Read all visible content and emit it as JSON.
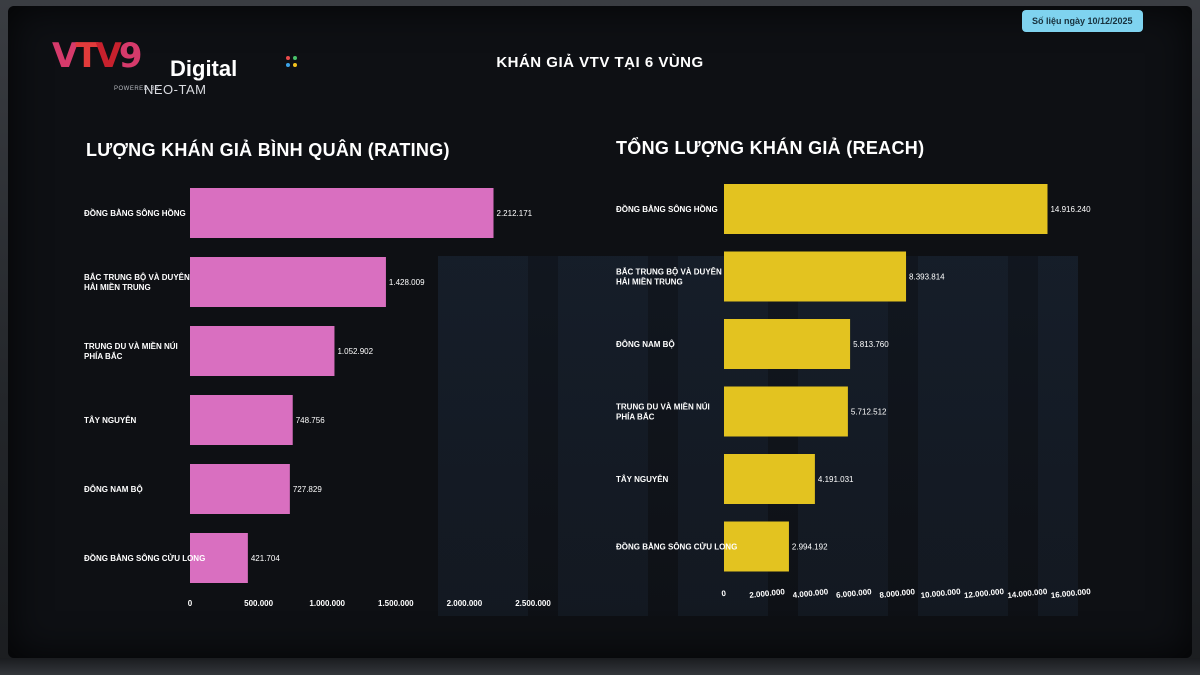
{
  "header": {
    "main_title": "KHÁN GIẢ VTV TẠI 6 VÙNG",
    "date_badge": "Số liệu ngày 10/12/2025"
  },
  "logo": {
    "vtv": "VTV9",
    "digital": "Digital",
    "powered": "POWERED BY",
    "neo": "NEO-TAM"
  },
  "colors": {
    "rating_bar": "#d96fc0",
    "reach_bar": "#e3c320",
    "text": "#ffffff",
    "badge_bg": "#7fd3ef"
  },
  "chart_data": [
    {
      "type": "bar",
      "orientation": "horizontal",
      "title": "LƯỢNG KHÁN GIẢ BÌNH QUÂN (RATING)",
      "categories": [
        "ĐỒNG BẰNG SÔNG HỒNG",
        "BẮC TRUNG BỘ VÀ DUYÊN HẢI MIỀN TRUNG",
        "TRUNG DU VÀ MIỀN NÚI PHÍA BẮC",
        "TÂY NGUYÊN",
        "ĐÔNG NAM BỘ",
        "ĐỒNG BẰNG SÔNG CỬU LONG"
      ],
      "values": [
        2212171,
        1428009,
        1052902,
        748756,
        727829,
        421704
      ],
      "value_labels": [
        "2.212.171",
        "1.428.009",
        "1.052.902",
        "748.756",
        "727.829",
        "421.704"
      ],
      "xlim": [
        0,
        2500000
      ],
      "ticks": [
        0,
        500000,
        1000000,
        1500000,
        2000000,
        2500000
      ],
      "tick_labels": [
        "0",
        "500.000",
        "1.000.000",
        "1.500.000",
        "2.000.000",
        "2.500.000"
      ],
      "color": "#d96fc0",
      "grid": false
    },
    {
      "type": "bar",
      "orientation": "horizontal",
      "title": "TỔNG LƯỢNG KHÁN GIẢ (REACH)",
      "categories": [
        "ĐỒNG BẰNG SÔNG HỒNG",
        "BẮC TRUNG BỘ VÀ DUYÊN HẢI MIỀN TRUNG",
        "ĐÔNG NAM BỘ",
        "TRUNG DU VÀ MIỀN NÚI PHÍA BẮC",
        "TÂY NGUYÊN",
        "ĐỒNG BẰNG SÔNG CỬU LONG"
      ],
      "values": [
        14916240,
        8393814,
        5813760,
        5712512,
        4191031,
        2994192
      ],
      "value_labels": [
        "14.916.240",
        "8.393.814",
        "5.813.760",
        "5.712.512",
        "4.191.031",
        "2.994.192"
      ],
      "xlim": [
        0,
        16000000
      ],
      "ticks": [
        0,
        2000000,
        4000000,
        6000000,
        8000000,
        10000000,
        12000000,
        14000000,
        16000000
      ],
      "tick_labels": [
        "0",
        "2.000.000",
        "4.000.000",
        "6.000.000",
        "8.000.000",
        "10.000.000",
        "12.000.000",
        "14.000.000",
        "16.000.000"
      ],
      "color": "#e3c320",
      "grid": false
    }
  ]
}
